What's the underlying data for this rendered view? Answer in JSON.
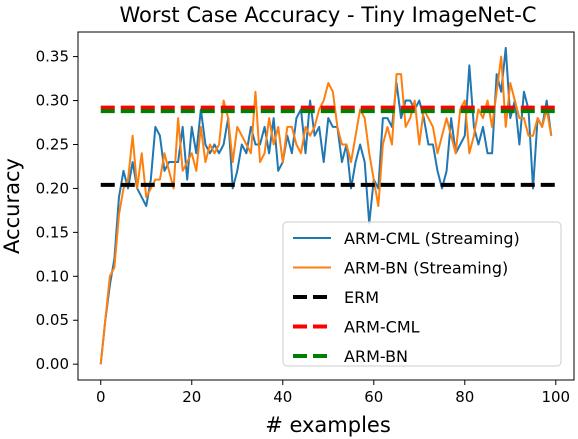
{
  "chart_data": {
    "type": "line",
    "title": "Worst Case Accuracy - Tiny ImageNet-C",
    "xlabel": "# examples",
    "ylabel": "Accuracy",
    "xlim": [
      -5,
      104
    ],
    "ylim": [
      -0.018,
      0.378
    ],
    "xticks": [
      0,
      20,
      40,
      60,
      80,
      100
    ],
    "yticks": [
      0.0,
      0.05,
      0.1,
      0.15,
      0.2,
      0.25,
      0.3,
      0.35
    ],
    "grid": false,
    "legend_position": "lower-right",
    "series": [
      {
        "name": "ARM-CML (Streaming)",
        "color": "#1f77b4",
        "style": "solid",
        "x": [
          0,
          1,
          2,
          3,
          4,
          5,
          6,
          7,
          8,
          9,
          10,
          11,
          12,
          13,
          14,
          15,
          16,
          17,
          18,
          19,
          20,
          21,
          22,
          23,
          24,
          25,
          26,
          27,
          28,
          29,
          30,
          31,
          32,
          33,
          34,
          35,
          36,
          37,
          38,
          39,
          40,
          41,
          42,
          43,
          44,
          45,
          46,
          47,
          48,
          49,
          50,
          51,
          52,
          53,
          54,
          55,
          56,
          57,
          58,
          59,
          60,
          61,
          62,
          63,
          64,
          65,
          66,
          67,
          68,
          69,
          70,
          71,
          72,
          73,
          74,
          75,
          76,
          77,
          78,
          79,
          80,
          81,
          82,
          83,
          84,
          85,
          86,
          87,
          88,
          89,
          90,
          91,
          92,
          93,
          94,
          95,
          96,
          97,
          98,
          99
        ],
        "values": [
          0.0,
          0.05,
          0.09,
          0.12,
          0.19,
          0.22,
          0.2,
          0.23,
          0.2,
          0.19,
          0.18,
          0.21,
          0.27,
          0.26,
          0.22,
          0.23,
          0.23,
          0.23,
          0.27,
          0.21,
          0.27,
          0.24,
          0.29,
          0.25,
          0.24,
          0.25,
          0.24,
          0.25,
          0.28,
          0.2,
          0.22,
          0.25,
          0.24,
          0.27,
          0.25,
          0.25,
          0.27,
          0.24,
          0.28,
          0.22,
          0.23,
          0.26,
          0.24,
          0.28,
          0.29,
          0.24,
          0.3,
          0.26,
          0.27,
          0.23,
          0.28,
          0.27,
          0.27,
          0.23,
          0.25,
          0.2,
          0.23,
          0.25,
          0.23,
          0.16,
          0.21,
          0.2,
          0.28,
          0.28,
          0.27,
          0.32,
          0.28,
          0.3,
          0.3,
          0.29,
          0.3,
          0.28,
          0.25,
          0.25,
          0.22,
          0.2,
          0.22,
          0.28,
          0.24,
          0.25,
          0.26,
          0.34,
          0.27,
          0.25,
          0.27,
          0.24,
          0.24,
          0.33,
          0.31,
          0.36,
          0.28,
          0.3,
          0.25,
          0.31,
          0.29,
          0.2,
          0.28,
          0.27,
          0.3,
          0.26
        ]
      },
      {
        "name": "ARM-BN (Streaming)",
        "color": "#ff7f0e",
        "style": "solid",
        "x": [
          0,
          1,
          2,
          3,
          4,
          5,
          6,
          7,
          8,
          9,
          10,
          11,
          12,
          13,
          14,
          15,
          16,
          17,
          18,
          19,
          20,
          21,
          22,
          23,
          24,
          25,
          26,
          27,
          28,
          29,
          30,
          31,
          32,
          33,
          34,
          35,
          36,
          37,
          38,
          39,
          40,
          41,
          42,
          43,
          44,
          45,
          46,
          47,
          48,
          49,
          50,
          51,
          52,
          53,
          54,
          55,
          56,
          57,
          58,
          59,
          60,
          61,
          62,
          63,
          64,
          65,
          66,
          67,
          68,
          69,
          70,
          71,
          72,
          73,
          74,
          75,
          76,
          77,
          78,
          79,
          80,
          81,
          82,
          83,
          84,
          85,
          86,
          87,
          88,
          89,
          90,
          91,
          92,
          93,
          94,
          95,
          96,
          97,
          98,
          99
        ],
        "values": [
          0.0,
          0.05,
          0.1,
          0.11,
          0.17,
          0.2,
          0.21,
          0.26,
          0.2,
          0.24,
          0.19,
          0.2,
          0.21,
          0.21,
          0.24,
          0.22,
          0.2,
          0.28,
          0.22,
          0.23,
          0.24,
          0.22,
          0.27,
          0.23,
          0.25,
          0.24,
          0.25,
          0.3,
          0.28,
          0.23,
          0.27,
          0.26,
          0.25,
          0.24,
          0.31,
          0.23,
          0.24,
          0.28,
          0.25,
          0.27,
          0.23,
          0.27,
          0.27,
          0.25,
          0.24,
          0.27,
          0.26,
          0.27,
          0.29,
          0.3,
          0.32,
          0.31,
          0.27,
          0.25,
          0.25,
          0.23,
          0.26,
          0.29,
          0.28,
          0.24,
          0.21,
          0.18,
          0.25,
          0.27,
          0.25,
          0.33,
          0.33,
          0.27,
          0.28,
          0.3,
          0.25,
          0.29,
          0.28,
          0.27,
          0.24,
          0.26,
          0.28,
          0.26,
          0.24,
          0.29,
          0.3,
          0.24,
          0.26,
          0.29,
          0.28,
          0.3,
          0.27,
          0.31,
          0.35,
          0.27,
          0.32,
          0.3,
          0.28,
          0.28,
          0.26,
          0.26,
          0.28,
          0.27,
          0.29,
          0.26
        ]
      },
      {
        "name": "ERM",
        "color": "#000000",
        "style": "dashed",
        "x": [
          0,
          100
        ],
        "values": [
          0.204,
          0.204
        ]
      },
      {
        "name": "ARM-CML",
        "color": "#ff0000",
        "style": "dashed",
        "x": [
          0,
          100
        ],
        "values": [
          0.292,
          0.292
        ]
      },
      {
        "name": "ARM-BN",
        "color": "#008000",
        "style": "dashed",
        "x": [
          0,
          100
        ],
        "values": [
          0.288,
          0.288
        ]
      }
    ]
  }
}
